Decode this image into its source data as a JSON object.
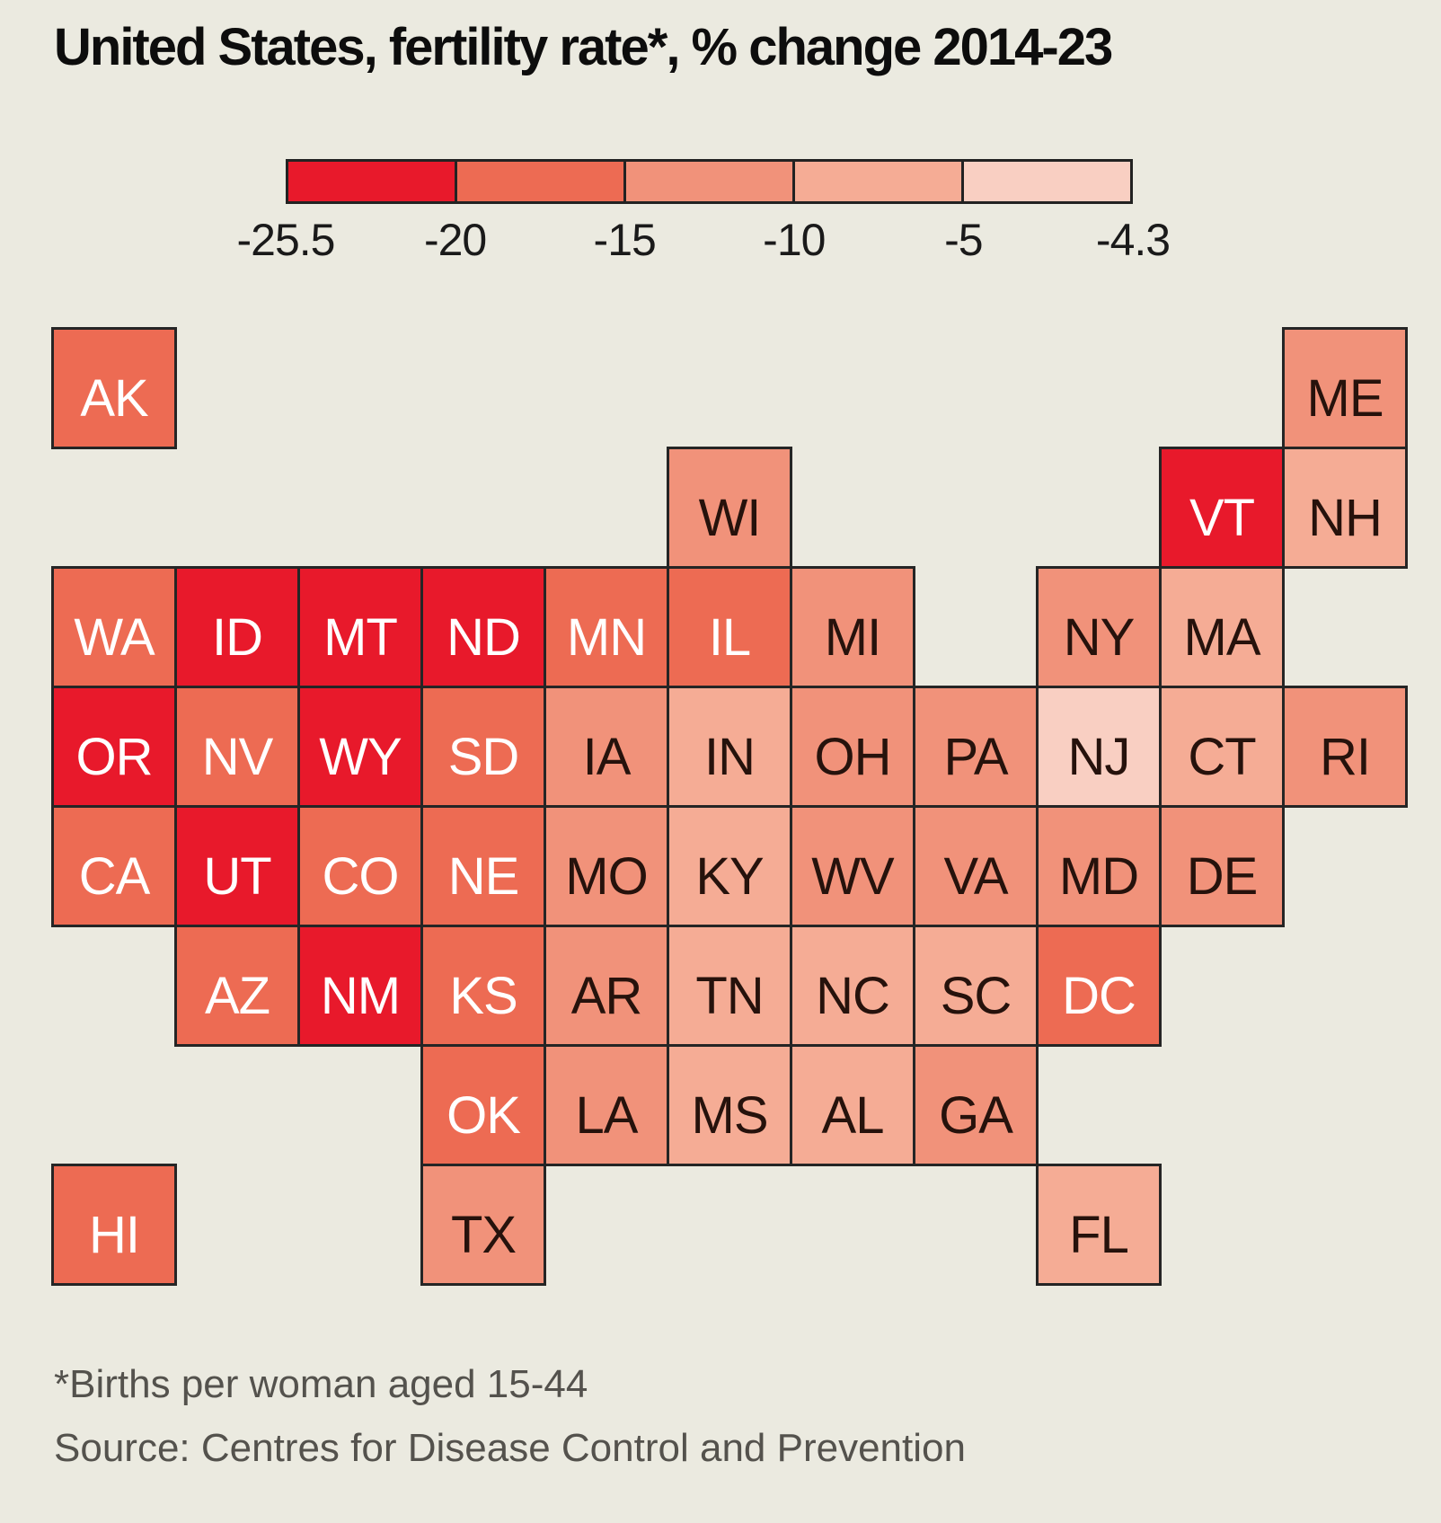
{
  "title": "United States, fertility rate*, % change 2014-23",
  "footnote": "*Births per woman aged 15-44",
  "source": "Source: Centres for Disease Control and Prevention",
  "colors": {
    "background": "#EBEAE0",
    "tile_border": "#252525",
    "title_text": "#0D0D0D",
    "footer_text": "#54524D",
    "tile_text_light": "#FFFFFF",
    "tile_text_dark": "#26120C",
    "bucket_colors": [
      "#E8192B",
      "#ED6B53",
      "#F1927A",
      "#F5AC95",
      "#F9CFC2"
    ]
  },
  "legend": {
    "tick_labels": [
      "-25.5",
      "-20",
      "-15",
      "-10",
      "-5",
      "-4.3"
    ]
  },
  "chart_data": {
    "type": "heatmap",
    "subtype": "us-state-tile-cartogram",
    "title": "United States, fertility rate*, % change 2014-23",
    "value_unit": "% change in fertility rate (births per woman aged 15-44), 2014-23",
    "scale_domain": [
      -25.5,
      -4.3
    ],
    "legend_position": "top",
    "bins": [
      {
        "label_range": "-25.5 to -20",
        "min": -25.5,
        "max": -20,
        "color": "#E8192B"
      },
      {
        "label_range": "-20 to -15",
        "min": -20,
        "max": -15,
        "color": "#ED6B53"
      },
      {
        "label_range": "-15 to -10",
        "min": -15,
        "max": -10,
        "color": "#F1927A"
      },
      {
        "label_range": "-10 to -5",
        "min": -10,
        "max": -5,
        "color": "#F5AC95"
      },
      {
        "label_range": "-5 to -4.3",
        "min": -5,
        "max": -4.3,
        "color": "#F9CFC2"
      }
    ],
    "states": [
      {
        "abbr": "AK",
        "col": 1,
        "row": 1,
        "bin": 2
      },
      {
        "abbr": "ME",
        "col": 11,
        "row": 1,
        "bin": 3
      },
      {
        "abbr": "WI",
        "col": 6,
        "row": 2,
        "bin": 3
      },
      {
        "abbr": "VT",
        "col": 10,
        "row": 2,
        "bin": 1
      },
      {
        "abbr": "NH",
        "col": 11,
        "row": 2,
        "bin": 4
      },
      {
        "abbr": "WA",
        "col": 1,
        "row": 3,
        "bin": 2
      },
      {
        "abbr": "ID",
        "col": 2,
        "row": 3,
        "bin": 1
      },
      {
        "abbr": "MT",
        "col": 3,
        "row": 3,
        "bin": 1
      },
      {
        "abbr": "ND",
        "col": 4,
        "row": 3,
        "bin": 1
      },
      {
        "abbr": "MN",
        "col": 5,
        "row": 3,
        "bin": 2
      },
      {
        "abbr": "IL",
        "col": 6,
        "row": 3,
        "bin": 2
      },
      {
        "abbr": "MI",
        "col": 7,
        "row": 3,
        "bin": 3
      },
      {
        "abbr": "NY",
        "col": 9,
        "row": 3,
        "bin": 3
      },
      {
        "abbr": "MA",
        "col": 10,
        "row": 3,
        "bin": 4
      },
      {
        "abbr": "OR",
        "col": 1,
        "row": 4,
        "bin": 1
      },
      {
        "abbr": "NV",
        "col": 2,
        "row": 4,
        "bin": 2
      },
      {
        "abbr": "WY",
        "col": 3,
        "row": 4,
        "bin": 1
      },
      {
        "abbr": "SD",
        "col": 4,
        "row": 4,
        "bin": 2
      },
      {
        "abbr": "IA",
        "col": 5,
        "row": 4,
        "bin": 3
      },
      {
        "abbr": "IN",
        "col": 6,
        "row": 4,
        "bin": 4
      },
      {
        "abbr": "OH",
        "col": 7,
        "row": 4,
        "bin": 3
      },
      {
        "abbr": "PA",
        "col": 8,
        "row": 4,
        "bin": 3
      },
      {
        "abbr": "NJ",
        "col": 9,
        "row": 4,
        "bin": 5
      },
      {
        "abbr": "CT",
        "col": 10,
        "row": 4,
        "bin": 4
      },
      {
        "abbr": "RI",
        "col": 11,
        "row": 4,
        "bin": 3
      },
      {
        "abbr": "CA",
        "col": 1,
        "row": 5,
        "bin": 2
      },
      {
        "abbr": "UT",
        "col": 2,
        "row": 5,
        "bin": 1
      },
      {
        "abbr": "CO",
        "col": 3,
        "row": 5,
        "bin": 2
      },
      {
        "abbr": "NE",
        "col": 4,
        "row": 5,
        "bin": 2
      },
      {
        "abbr": "MO",
        "col": 5,
        "row": 5,
        "bin": 3
      },
      {
        "abbr": "KY",
        "col": 6,
        "row": 5,
        "bin": 4
      },
      {
        "abbr": "WV",
        "col": 7,
        "row": 5,
        "bin": 3
      },
      {
        "abbr": "VA",
        "col": 8,
        "row": 5,
        "bin": 3
      },
      {
        "abbr": "MD",
        "col": 9,
        "row": 5,
        "bin": 3
      },
      {
        "abbr": "DE",
        "col": 10,
        "row": 5,
        "bin": 3
      },
      {
        "abbr": "AZ",
        "col": 2,
        "row": 6,
        "bin": 2
      },
      {
        "abbr": "NM",
        "col": 3,
        "row": 6,
        "bin": 1
      },
      {
        "abbr": "KS",
        "col": 4,
        "row": 6,
        "bin": 2
      },
      {
        "abbr": "AR",
        "col": 5,
        "row": 6,
        "bin": 3
      },
      {
        "abbr": "TN",
        "col": 6,
        "row": 6,
        "bin": 4
      },
      {
        "abbr": "NC",
        "col": 7,
        "row": 6,
        "bin": 4
      },
      {
        "abbr": "SC",
        "col": 8,
        "row": 6,
        "bin": 4
      },
      {
        "abbr": "DC",
        "col": 9,
        "row": 6,
        "bin": 2
      },
      {
        "abbr": "OK",
        "col": 4,
        "row": 7,
        "bin": 2
      },
      {
        "abbr": "LA",
        "col": 5,
        "row": 7,
        "bin": 3
      },
      {
        "abbr": "MS",
        "col": 6,
        "row": 7,
        "bin": 4
      },
      {
        "abbr": "AL",
        "col": 7,
        "row": 7,
        "bin": 4
      },
      {
        "abbr": "GA",
        "col": 8,
        "row": 7,
        "bin": 3
      },
      {
        "abbr": "HI",
        "col": 1,
        "row": 8,
        "bin": 2
      },
      {
        "abbr": "TX",
        "col": 4,
        "row": 8,
        "bin": 3
      },
      {
        "abbr": "FL",
        "col": 9,
        "row": 8,
        "bin": 4
      }
    ]
  }
}
